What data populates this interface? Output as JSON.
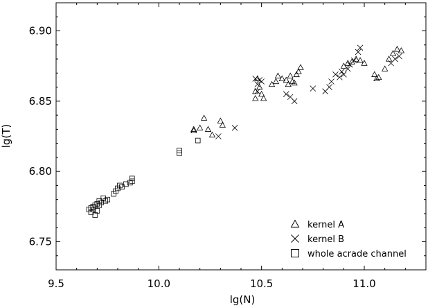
{
  "chart_data": {
    "type": "scatter",
    "xlabel": "lg(N)",
    "ylabel": "lg(T)",
    "xlim": [
      9.5,
      11.3
    ],
    "ylim": [
      6.73,
      6.92
    ],
    "xticks": [
      {
        "value": 9.5,
        "label": "9.5"
      },
      {
        "value": 10.0,
        "label": "10.0"
      },
      {
        "value": 10.5,
        "label": "10.5"
      },
      {
        "value": 11.0,
        "label": "11.0"
      }
    ],
    "yticks": [
      {
        "value": 6.75,
        "label": "6.75"
      },
      {
        "value": 6.8,
        "label": "6.80"
      },
      {
        "value": 6.85,
        "label": "6.85"
      },
      {
        "value": 6.9,
        "label": "6.90"
      }
    ],
    "grid": false,
    "legend_position": "bottom-right",
    "series": [
      {
        "name": "kernel A",
        "marker": "triangle",
        "points": [
          [
            10.17,
            6.829
          ],
          [
            10.17,
            6.83
          ],
          [
            10.2,
            6.831
          ],
          [
            10.22,
            6.838
          ],
          [
            10.24,
            6.83
          ],
          [
            10.26,
            6.826
          ],
          [
            10.3,
            6.836
          ],
          [
            10.31,
            6.833
          ],
          [
            10.47,
            6.857
          ],
          [
            10.47,
            6.852
          ],
          [
            10.48,
            6.866
          ],
          [
            10.49,
            6.86
          ],
          [
            10.5,
            6.855
          ],
          [
            10.51,
            6.852
          ],
          [
            10.55,
            6.862
          ],
          [
            10.57,
            6.864
          ],
          [
            10.58,
            6.868
          ],
          [
            10.6,
            6.866
          ],
          [
            10.62,
            6.865
          ],
          [
            10.63,
            6.862
          ],
          [
            10.64,
            6.868
          ],
          [
            10.65,
            6.864
          ],
          [
            10.66,
            6.863
          ],
          [
            10.67,
            6.869
          ],
          [
            10.68,
            6.871
          ],
          [
            10.69,
            6.874
          ],
          [
            10.9,
            6.875
          ],
          [
            10.92,
            6.877
          ],
          [
            10.94,
            6.878
          ],
          [
            10.96,
            6.88
          ],
          [
            10.98,
            6.879
          ],
          [
            11.0,
            6.877
          ],
          [
            11.05,
            6.869
          ],
          [
            11.06,
            6.866
          ],
          [
            11.07,
            6.867
          ],
          [
            11.1,
            6.873
          ],
          [
            11.12,
            6.88
          ],
          [
            11.14,
            6.884
          ],
          [
            11.16,
            6.887
          ],
          [
            11.18,
            6.886
          ]
        ]
      },
      {
        "name": "kernel B",
        "marker": "x",
        "points": [
          [
            10.29,
            6.825
          ],
          [
            10.37,
            6.831
          ],
          [
            10.47,
            6.866
          ],
          [
            10.48,
            6.862
          ],
          [
            10.48,
            6.857
          ],
          [
            10.49,
            6.865
          ],
          [
            10.5,
            6.864
          ],
          [
            10.62,
            6.855
          ],
          [
            10.64,
            6.853
          ],
          [
            10.66,
            6.85
          ],
          [
            10.75,
            6.859
          ],
          [
            10.81,
            6.857
          ],
          [
            10.83,
            6.86
          ],
          [
            10.84,
            6.864
          ],
          [
            10.86,
            6.869
          ],
          [
            10.88,
            6.867
          ],
          [
            10.89,
            6.871
          ],
          [
            10.9,
            6.869
          ],
          [
            10.92,
            6.873
          ],
          [
            10.93,
            6.876
          ],
          [
            10.95,
            6.879
          ],
          [
            10.97,
            6.885
          ],
          [
            10.98,
            6.888
          ],
          [
            11.13,
            6.877
          ],
          [
            11.15,
            6.88
          ],
          [
            11.17,
            6.882
          ]
        ]
      },
      {
        "name": "whole acrade channel",
        "marker": "square",
        "points": [
          [
            9.66,
            6.773
          ],
          [
            9.67,
            6.774
          ],
          [
            9.67,
            6.771
          ],
          [
            9.68,
            6.775
          ],
          [
            9.68,
            6.773
          ],
          [
            9.69,
            6.776
          ],
          [
            9.69,
            6.769
          ],
          [
            9.7,
            6.772
          ],
          [
            9.7,
            6.777
          ],
          [
            9.71,
            6.776
          ],
          [
            9.71,
            6.779
          ],
          [
            9.72,
            6.778
          ],
          [
            9.73,
            6.781
          ],
          [
            9.74,
            6.779
          ],
          [
            9.75,
            6.78
          ],
          [
            9.78,
            6.784
          ],
          [
            9.79,
            6.786
          ],
          [
            9.8,
            6.788
          ],
          [
            9.81,
            6.79
          ],
          [
            9.82,
            6.789
          ],
          [
            9.84,
            6.791
          ],
          [
            9.86,
            6.792
          ],
          [
            9.87,
            6.795
          ],
          [
            9.87,
            6.793
          ],
          [
            10.1,
            6.813
          ],
          [
            10.1,
            6.815
          ],
          [
            10.19,
            6.822
          ]
        ]
      }
    ]
  }
}
